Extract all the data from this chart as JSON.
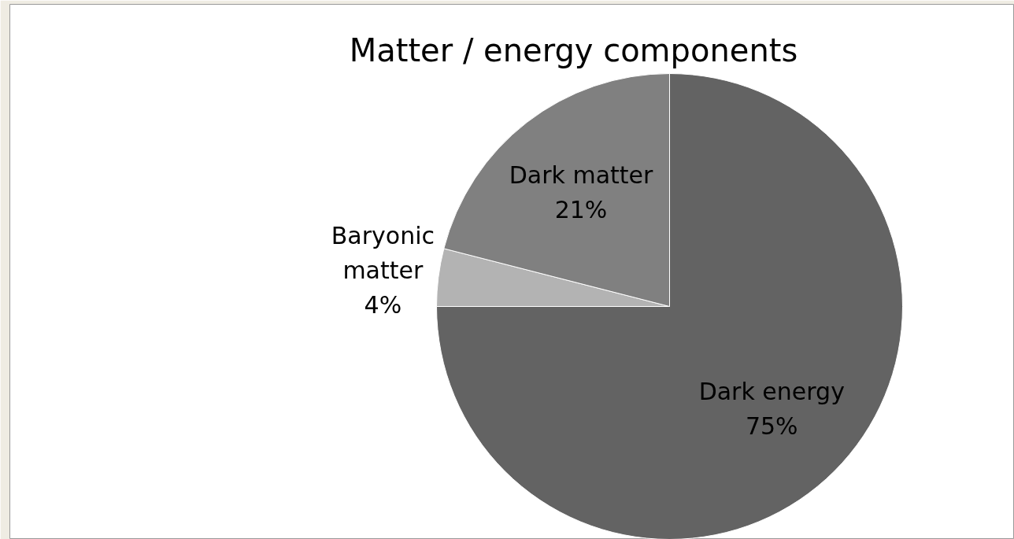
{
  "chart_data": {
    "type": "pie",
    "title": "Matter / energy components",
    "categories": [
      "Dark energy",
      "Baryonic matter",
      "Dark matter"
    ],
    "values": [
      75,
      4,
      21
    ],
    "value_labels": [
      "75%",
      "4%",
      "21%"
    ],
    "colors": [
      "#636363",
      "#b3b3b3",
      "#808080"
    ]
  }
}
